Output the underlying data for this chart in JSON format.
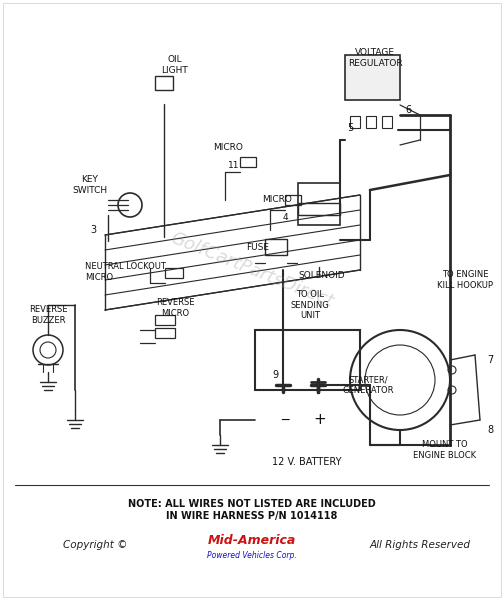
{
  "background_color": "#ffffff",
  "note_text": "NOTE: ALL WIRES NOT LISTED ARE INCLUDED\nIN WIRE HARNESS P/N 1014118",
  "watermark": "GolfCartPartsDirect",
  "line_color": "#2a2a2a",
  "wire_color": "#1a1a1a",
  "label_color": "#111111",
  "fig_w": 5.04,
  "fig_h": 6.0,
  "dpi": 100,
  "components": {
    "oil_light_label": "OIL\nLIGHT",
    "key_switch_label": "KEY\nSWITCH",
    "neutral_lockout_label": "NEUTRAL LOCKOUT\nMICRO",
    "reverse_buzzer_label": "REVERSE\nBUZZER",
    "reverse_micro_label": "REVERSE\nMICRO",
    "battery_label": "12 V. BATTERY",
    "micro_label": "MICRO",
    "fuse_label": "FUSE",
    "solenoid_label": "SOLENOID",
    "voltage_reg_label": "VOLTAGE\nREGULATOR",
    "starter_label": "STARTER/\nGENERATOR",
    "oil_sending_label": "TO OIL\nSENDING\nUNIT",
    "engine_kill_label": "TO ENGINE\nKILL HOOKUP",
    "mount_label": "MOUNT TO\nENGINE BLOCK"
  }
}
